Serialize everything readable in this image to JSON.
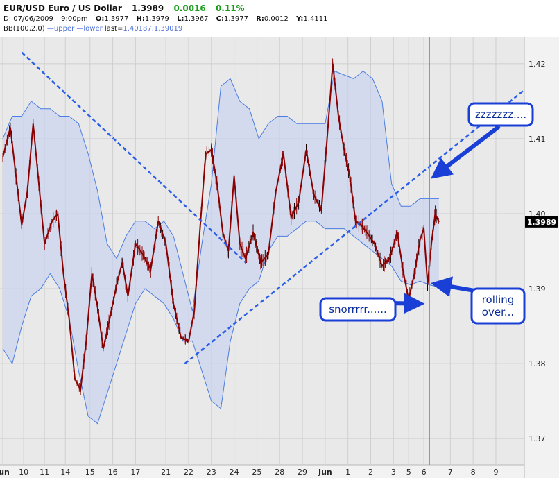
{
  "header": {
    "symbol": "EUR/USD Euro / US Dollar",
    "last": "1.3989",
    "change": "0.0016",
    "change_pct": "0.11%",
    "ohlc": {
      "date_label": "D:",
      "date": "07/06/2009",
      "time": "9:00pm",
      "o_label": "O:",
      "o": "1.3977",
      "h_label": "H:",
      "h": "1.3979",
      "l_label": "L:",
      "l": "1.3967",
      "c_label": "C:",
      "c": "1.3977",
      "r_label": "R:",
      "r": "0.0012",
      "y_label": "Y:",
      "y": "1.4111"
    },
    "indicator": {
      "name": "BB(100,2.0)",
      "upper": "upper",
      "lower": "lower",
      "last_label": "last=",
      "last_values": "1.40187,1.39019"
    }
  },
  "chart_data": {
    "type": "line",
    "title": "EUR/USD Euro / US Dollar",
    "subtitle": "",
    "xlabel": "",
    "ylabel": "",
    "ylim": [
      1.3665,
      1.4235
    ],
    "y_ticks": [
      "1.37",
      "1.38",
      "1.39",
      "1.40",
      "1.41",
      "1.42"
    ],
    "y_tick_values": [
      1.37,
      1.38,
      1.39,
      1.4,
      1.41,
      1.42
    ],
    "x_ticks": [
      "Jun",
      "10",
      "11",
      "14",
      "15",
      "16",
      "17",
      "21",
      "22",
      "23",
      "24",
      "25",
      "28",
      "29",
      "Jun",
      "1",
      "2",
      "3",
      "5",
      "6",
      "7",
      "8",
      "9"
    ],
    "x_tick_index": [
      0,
      11,
      22,
      33,
      46,
      58,
      70,
      86,
      98,
      110,
      122,
      134,
      146,
      158,
      170,
      182,
      194,
      206,
      214,
      222,
      236,
      248,
      260
    ],
    "current_price": "1.3989",
    "current_marker_index": 225,
    "grid": true,
    "series": [
      {
        "name": "EUR/USD",
        "color": "#8b0000",
        "x": [
          0,
          4,
          7,
          10,
          13,
          16,
          19,
          22,
          26,
          29,
          32,
          35,
          38,
          41,
          44,
          47,
          50,
          53,
          56,
          60,
          63,
          66,
          70,
          74,
          78,
          82,
          86,
          90,
          94,
          98,
          101,
          104,
          107,
          110,
          113,
          116,
          119,
          122,
          125,
          128,
          132,
          136,
          140,
          144,
          148,
          152,
          156,
          160,
          164,
          168,
          171,
          174,
          177,
          180,
          183,
          186,
          189,
          192,
          196,
          200,
          204,
          208,
          211,
          214,
          217,
          220,
          222,
          224,
          226,
          228,
          230
        ],
        "values": [
          1.4075,
          1.4115,
          1.405,
          1.3985,
          1.403,
          1.412,
          1.404,
          1.396,
          1.399,
          1.4,
          1.392,
          1.386,
          1.378,
          1.3765,
          1.383,
          1.392,
          1.3875,
          1.382,
          1.3855,
          1.3905,
          1.3935,
          1.389,
          1.396,
          1.3945,
          1.3925,
          1.399,
          1.396,
          1.388,
          1.3835,
          1.383,
          1.387,
          1.398,
          1.408,
          1.4085,
          1.404,
          1.3975,
          1.395,
          1.405,
          1.396,
          1.394,
          1.3975,
          1.3935,
          1.3945,
          1.403,
          1.408,
          1.3995,
          1.4015,
          1.4085,
          1.4025,
          1.4005,
          1.41,
          1.42,
          1.413,
          1.4085,
          1.405,
          1.399,
          1.3985,
          1.3975,
          1.396,
          1.393,
          1.394,
          1.3975,
          1.3925,
          1.3885,
          1.392,
          1.3965,
          1.398,
          1.3905,
          1.396,
          1.4,
          1.3989
        ]
      },
      {
        "name": "upper",
        "color": "#4a7de0",
        "x": [
          0,
          5,
          10,
          15,
          20,
          25,
          30,
          35,
          40,
          45,
          50,
          55,
          60,
          65,
          70,
          75,
          80,
          85,
          90,
          95,
          100,
          105,
          110,
          115,
          120,
          125,
          130,
          135,
          140,
          145,
          150,
          155,
          160,
          165,
          170,
          175,
          180,
          185,
          190,
          195,
          200,
          205,
          210,
          215,
          220,
          225,
          230
        ],
        "values": [
          1.41,
          1.413,
          1.413,
          1.415,
          1.414,
          1.414,
          1.413,
          1.413,
          1.412,
          1.408,
          1.403,
          1.396,
          1.394,
          1.397,
          1.399,
          1.399,
          1.398,
          1.399,
          1.397,
          1.392,
          1.387,
          1.396,
          1.404,
          1.417,
          1.418,
          1.415,
          1.414,
          1.41,
          1.412,
          1.413,
          1.413,
          1.412,
          1.412,
          1.412,
          1.412,
          1.419,
          1.4185,
          1.418,
          1.419,
          1.418,
          1.415,
          1.404,
          1.401,
          1.401,
          1.402,
          1.402,
          1.402
        ]
      },
      {
        "name": "lower",
        "color": "#4a7de0",
        "x": [
          0,
          5,
          10,
          15,
          20,
          25,
          30,
          35,
          40,
          45,
          50,
          55,
          60,
          65,
          70,
          75,
          80,
          85,
          90,
          95,
          100,
          105,
          110,
          115,
          120,
          125,
          130,
          135,
          140,
          145,
          150,
          155,
          160,
          165,
          170,
          175,
          180,
          185,
          190,
          195,
          200,
          205,
          210,
          215,
          220,
          225,
          230
        ],
        "values": [
          1.382,
          1.38,
          1.385,
          1.389,
          1.39,
          1.392,
          1.39,
          1.386,
          1.379,
          1.373,
          1.372,
          1.376,
          1.38,
          1.384,
          1.388,
          1.39,
          1.389,
          1.388,
          1.386,
          1.383,
          1.383,
          1.379,
          1.375,
          1.374,
          1.383,
          1.388,
          1.39,
          1.391,
          1.395,
          1.397,
          1.397,
          1.398,
          1.399,
          1.399,
          1.398,
          1.398,
          1.398,
          1.397,
          1.396,
          1.395,
          1.394,
          1.393,
          1.391,
          1.3905,
          1.391,
          1.3905,
          1.3902
        ]
      }
    ],
    "trendlines": [
      {
        "name": "downtrend",
        "x": [
          10,
          128
        ],
        "values": [
          1.4215,
          1.3935
        ]
      },
      {
        "name": "uptrend",
        "x": [
          96,
          275
        ],
        "values": [
          1.38,
          1.4165
        ]
      }
    ],
    "annotations": [
      {
        "text": "zzzzzzz....",
        "target_index": 230,
        "target_value": 1.4055
      },
      {
        "text": "snorrrrr......",
        "target_index": 217,
        "target_value": 1.388
      },
      {
        "text": "rolling over...",
        "target_index": 231,
        "target_value": 1.3905
      }
    ]
  }
}
